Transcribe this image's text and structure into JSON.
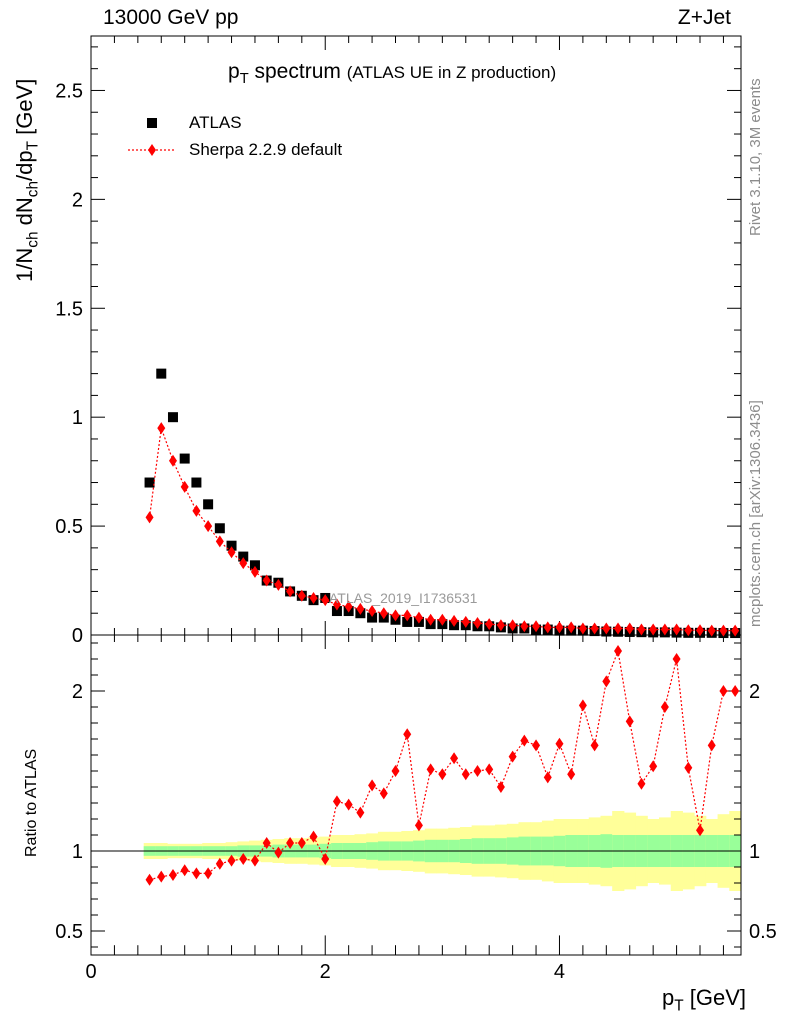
{
  "header": {
    "left": "13000 GeV pp",
    "right": "Z+Jet"
  },
  "title": {
    "main_p": "p",
    "main_sub": "T",
    "main_rest": " spectrum",
    "sub": "(ATLAS UE in Z production)"
  },
  "ylabel_top": {
    "a": "1/N",
    "b": "ch",
    "c": " dN",
    "d": "ch",
    "e": "/dp",
    "f": "T",
    "g": " [GeV]"
  },
  "ylabel_bottom": "Ratio to ATLAS",
  "xlabel": {
    "p": "p",
    "sub": "T",
    "rest": " [GeV]"
  },
  "side_text_1": "Rivet 3.1.10,  3M events",
  "side_text_2": "mcplots.cern.ch [arXiv:1306.3436]",
  "analysis_id": "ATLAS_2019_I1736531",
  "legend": [
    {
      "name": "ATLAS",
      "color": "#000000",
      "marker": "square"
    },
    {
      "name": "Sherpa 2.2.9 default",
      "color": "#ff0000",
      "marker": "diamond"
    }
  ],
  "chart_data": [
    {
      "type": "scatter",
      "xlim": [
        0,
        5.55
      ],
      "ylim": [
        0,
        2.75
      ],
      "yticks": [
        "0",
        "0.5",
        "1",
        "1.5",
        "2",
        "2.5"
      ],
      "xticks": [
        "0",
        "2",
        "4"
      ],
      "series": [
        {
          "name": "ATLAS",
          "x": [
            0.5,
            0.6,
            0.7,
            0.8,
            0.9,
            1.0,
            1.1,
            1.2,
            1.3,
            1.4,
            1.5,
            1.6,
            1.7,
            1.8,
            1.9,
            2.0,
            2.1,
            2.2,
            2.3,
            2.4,
            2.5,
            2.6,
            2.7,
            2.8,
            2.9,
            3.0,
            3.1,
            3.2,
            3.3,
            3.4,
            3.5,
            3.6,
            3.7,
            3.8,
            3.9,
            4.0,
            4.1,
            4.2,
            4.3,
            4.4,
            4.5,
            4.6,
            4.7,
            4.8,
            4.9,
            5.0,
            5.1,
            5.2,
            5.3,
            5.4,
            5.5
          ],
          "y": [
            0.7,
            1.2,
            1.0,
            0.81,
            0.7,
            0.6,
            0.49,
            0.41,
            0.36,
            0.32,
            0.25,
            0.24,
            0.2,
            0.18,
            0.16,
            0.17,
            0.11,
            0.11,
            0.1,
            0.08,
            0.08,
            0.07,
            0.06,
            0.06,
            0.05,
            0.05,
            0.045,
            0.045,
            0.04,
            0.04,
            0.035,
            0.03,
            0.03,
            0.025,
            0.025,
            0.02,
            0.02,
            0.02,
            0.018,
            0.016,
            0.015,
            0.014,
            0.013,
            0.012,
            0.012,
            0.011,
            0.01,
            0.01,
            0.01,
            0.009,
            0.009
          ]
        },
        {
          "name": "Sherpa 2.2.9 default",
          "x": [
            0.5,
            0.6,
            0.7,
            0.8,
            0.9,
            1.0,
            1.1,
            1.2,
            1.3,
            1.4,
            1.5,
            1.6,
            1.7,
            1.8,
            1.9,
            2.0,
            2.1,
            2.2,
            2.3,
            2.4,
            2.5,
            2.6,
            2.7,
            2.8,
            2.9,
            3.0,
            3.1,
            3.2,
            3.3,
            3.4,
            3.5,
            3.6,
            3.7,
            3.8,
            3.9,
            4.0,
            4.1,
            4.2,
            4.3,
            4.4,
            4.5,
            4.6,
            4.7,
            4.8,
            4.9,
            5.0,
            5.1,
            5.2,
            5.3,
            5.4,
            5.5
          ],
          "y": [
            0.54,
            0.95,
            0.8,
            0.68,
            0.57,
            0.5,
            0.43,
            0.38,
            0.33,
            0.29,
            0.25,
            0.23,
            0.2,
            0.18,
            0.17,
            0.16,
            0.14,
            0.13,
            0.12,
            0.11,
            0.1,
            0.09,
            0.09,
            0.08,
            0.07,
            0.07,
            0.065,
            0.06,
            0.055,
            0.05,
            0.045,
            0.045,
            0.04,
            0.04,
            0.035,
            0.035,
            0.035,
            0.03,
            0.03,
            0.03,
            0.03,
            0.03,
            0.025,
            0.025,
            0.025,
            0.025,
            0.022,
            0.022,
            0.02,
            0.02,
            0.02
          ]
        }
      ]
    },
    {
      "type": "scatter",
      "xlim": [
        0,
        5.55
      ],
      "ylim": [
        0.35,
        2.35
      ],
      "yticks": [
        "0.5",
        "1",
        "2"
      ],
      "reference_line": 1,
      "band_colors": {
        "inner": "#99ff99",
        "outer": "#ffff99"
      },
      "bands": {
        "x": [
          0.5,
          0.6,
          0.7,
          0.8,
          0.9,
          1.0,
          1.1,
          1.2,
          1.3,
          1.4,
          1.5,
          1.6,
          1.7,
          1.8,
          1.9,
          2.0,
          2.1,
          2.2,
          2.3,
          2.4,
          2.5,
          2.6,
          2.7,
          2.8,
          2.9,
          3.0,
          3.1,
          3.2,
          3.3,
          3.4,
          3.5,
          3.6,
          3.7,
          3.8,
          3.9,
          4.0,
          4.1,
          4.2,
          4.3,
          4.4,
          4.5,
          4.6,
          4.7,
          4.8,
          4.9,
          5.0,
          5.1,
          5.2,
          5.3,
          5.4,
          5.5
        ],
        "inner": [
          0.03,
          0.03,
          0.03,
          0.03,
          0.03,
          0.03,
          0.03,
          0.03,
          0.035,
          0.035,
          0.035,
          0.04,
          0.04,
          0.04,
          0.04,
          0.045,
          0.05,
          0.05,
          0.05,
          0.055,
          0.06,
          0.06,
          0.06,
          0.065,
          0.07,
          0.07,
          0.07,
          0.075,
          0.08,
          0.08,
          0.08,
          0.085,
          0.09,
          0.09,
          0.09,
          0.095,
          0.1,
          0.1,
          0.1,
          0.105,
          0.1,
          0.1,
          0.1,
          0.1,
          0.1,
          0.1,
          0.1,
          0.1,
          0.1,
          0.1,
          0.1
        ],
        "outer": [
          0.05,
          0.05,
          0.045,
          0.045,
          0.045,
          0.05,
          0.05,
          0.055,
          0.06,
          0.065,
          0.07,
          0.075,
          0.08,
          0.08,
          0.085,
          0.09,
          0.1,
          0.1,
          0.105,
          0.11,
          0.12,
          0.12,
          0.125,
          0.13,
          0.14,
          0.14,
          0.145,
          0.15,
          0.16,
          0.16,
          0.165,
          0.17,
          0.18,
          0.18,
          0.19,
          0.2,
          0.2,
          0.2,
          0.21,
          0.22,
          0.25,
          0.24,
          0.22,
          0.2,
          0.21,
          0.25,
          0.24,
          0.22,
          0.2,
          0.23,
          0.25
        ]
      },
      "series": [
        {
          "name": "Sherpa 2.2.9 default",
          "x": [
            0.5,
            0.6,
            0.7,
            0.8,
            0.9,
            1.0,
            1.1,
            1.2,
            1.3,
            1.4,
            1.5,
            1.6,
            1.7,
            1.8,
            1.9,
            2.0,
            2.1,
            2.2,
            2.3,
            2.4,
            2.5,
            2.6,
            2.7,
            2.8,
            2.9,
            3.0,
            3.1,
            3.2,
            3.3,
            3.4,
            3.5,
            3.6,
            3.7,
            3.8,
            3.9,
            4.0,
            4.1,
            4.2,
            4.3,
            4.4,
            4.5,
            4.6,
            4.7,
            4.8,
            4.9,
            5.0,
            5.1,
            5.2,
            5.3,
            5.4,
            5.5
          ],
          "y": [
            0.82,
            0.84,
            0.85,
            0.88,
            0.86,
            0.86,
            0.92,
            0.94,
            0.95,
            0.94,
            1.05,
            0.99,
            1.05,
            1.05,
            1.09,
            0.95,
            1.31,
            1.29,
            1.24,
            1.41,
            1.36,
            1.5,
            1.73,
            1.16,
            1.51,
            1.48,
            1.58,
            1.48,
            1.5,
            1.51,
            1.4,
            1.59,
            1.69,
            1.66,
            1.46,
            1.67,
            1.48,
            1.91,
            1.66,
            2.06,
            2.25,
            1.81,
            1.42,
            1.53,
            1.9,
            2.2,
            1.52,
            1.13,
            1.66,
            2.0,
            2.0
          ]
        }
      ]
    }
  ]
}
